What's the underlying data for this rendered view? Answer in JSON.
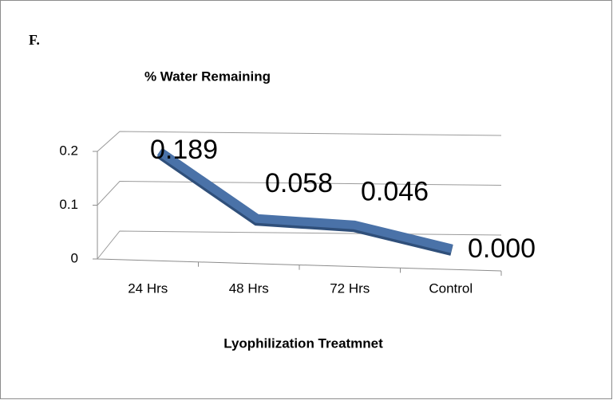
{
  "panel_label": "F.",
  "chart_data": {
    "type": "line3d",
    "title": "% Water Remaining",
    "x_label": "Lyophilization Treatmnet",
    "categories": [
      "24 Hrs",
      "48 Hrs",
      "72 Hrs",
      "Control"
    ],
    "values": [
      0.189,
      0.058,
      0.046,
      0.0
    ],
    "value_labels": [
      "0.189",
      "0.058",
      "0.046",
      "0.000"
    ],
    "color": "#4a72a8",
    "ylim": [
      0,
      0.2
    ],
    "yticks": [
      0,
      0.1,
      0.2
    ],
    "grid": true
  }
}
